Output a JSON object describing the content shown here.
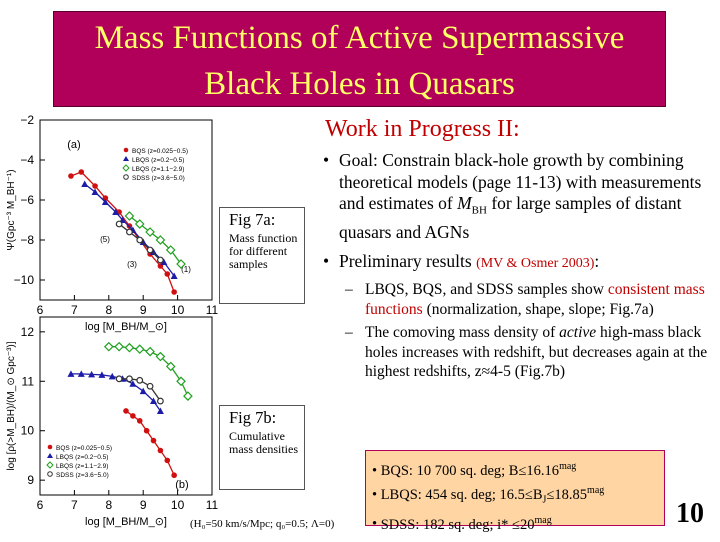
{
  "title": {
    "line1": "Mass Functions of Active Supermassive",
    "line2": "Black Holes in Quasars"
  },
  "subtitle": "Work in Progress II:",
  "goal": {
    "lead": "Goal: Constrain black-hole growth by combining theoretical models (page 11-13) with measurements and estimates of ",
    "var": "M",
    "var_sub": "BH",
    "tail": " for large samples of distant quasars and AGNs"
  },
  "prelim": {
    "lead": "Preliminary results ",
    "ref": "(MV & Osmer 2003)",
    "tail": ":"
  },
  "sub1": {
    "lead": "LBQS, BQS, and SDSS samples show ",
    "highlight": "consistent mass functions",
    "tail": " (normalization, shape, slope; Fig.7a)"
  },
  "sub2": {
    "lead": "The comoving mass density of ",
    "em": "active",
    "tail": " high-mass black holes increases with redshift, but decreases again at the highest redshifts, z≈4-5 (Fig.7b)"
  },
  "surveys": [
    {
      "name": "BQS: 10 700 sq. deg; B≤16.16",
      "sup": "mag"
    },
    {
      "name": "LBQS: 454 sq. deg; 16.5≤B",
      "sub": "J",
      "mid": "≤18.85",
      "sup": "mag"
    },
    {
      "name": "SDSS: 182 sq. deg;  i* ≤20",
      "sup": "mag"
    }
  ],
  "page_number": "10",
  "fig7a": {
    "title": "Fig 7a:",
    "desc": "Mass function for different samples"
  },
  "fig7b": {
    "title": "Fig 7b:",
    "desc": "Cumulative mass densities"
  },
  "footnote": "(H₀=50 km/s/Mpc; q₀=0.5; Λ=0)",
  "colors": {
    "title_bg": "#b0005a",
    "title_text": "#ffff66",
    "accent_red": "#c00000",
    "box_bg": "#fed5a3"
  },
  "chart_data": [
    {
      "type": "line",
      "panel_label": "(a)",
      "xlabel": "log [M_BH/M_⊙]",
      "ylabel": "Ψ(Gpc⁻³ M_BH⁻¹)",
      "xlim": [
        6,
        11
      ],
      "ylim": [
        -11,
        -2
      ],
      "xticks": [
        "6",
        "7",
        "8",
        "9",
        "10",
        "11"
      ],
      "yticks": [
        "−2",
        "−4",
        "−6",
        "−8",
        "−10"
      ],
      "annotations": [
        "(5)",
        "(3)",
        "(1)"
      ],
      "series": [
        {
          "name": "BQS (z=0.025−0.5)",
          "color": "#d01010",
          "marker": "circle",
          "x": [
            6.9,
            7.2,
            7.6,
            7.9,
            8.3,
            8.6,
            8.9,
            9.2,
            9.5,
            9.7,
            9.9
          ],
          "y": [
            -4.8,
            -4.6,
            -5.3,
            -5.9,
            -6.6,
            -7.3,
            -8.0,
            -8.7,
            -9.3,
            -9.7,
            -10.6
          ]
        },
        {
          "name": "LBQS (z=0.2−0.5)",
          "color": "#1c1ca8",
          "marker": "triangle",
          "x": [
            7.3,
            7.6,
            7.9,
            8.2,
            8.4,
            8.7,
            9.0,
            9.3,
            9.6,
            9.9
          ],
          "y": [
            -5.2,
            -5.6,
            -6.1,
            -6.6,
            -7.0,
            -7.5,
            -8.1,
            -8.6,
            -9.1,
            -9.8
          ]
        },
        {
          "name": "LBQS (z=1.1−2.9)",
          "color": "#20a020",
          "marker": "diamond",
          "x": [
            8.6,
            8.9,
            9.2,
            9.5,
            9.8,
            10.1
          ],
          "y": [
            -6.8,
            -7.2,
            -7.6,
            -8.0,
            -8.5,
            -9.2
          ]
        },
        {
          "name": "SDSS (z=3.6−5.0)",
          "color": "#333333",
          "marker": "circle-open",
          "x": [
            8.3,
            8.6,
            8.9,
            9.2,
            9.5
          ],
          "y": [
            -7.2,
            -7.6,
            -8.0,
            -8.5,
            -9.0
          ]
        }
      ]
    },
    {
      "type": "line",
      "panel_label": "(b)",
      "xlabel": "log [M_BH/M_⊙]",
      "ylabel": "log [ρ(>M_BH)/(M_⊙ Gpc⁻³)]",
      "xlim": [
        6,
        11
      ],
      "ylim": [
        8.7,
        12.3
      ],
      "xticks": [
        "6",
        "7",
        "8",
        "9",
        "10",
        "11"
      ],
      "yticks": [
        "9",
        "10",
        "11",
        "12"
      ],
      "series": [
        {
          "name": "BQS (z=0.025−0.5)",
          "color": "#d01010",
          "marker": "circle",
          "x": [
            8.5,
            8.7,
            8.9,
            9.1,
            9.3,
            9.5,
            9.7,
            9.9
          ],
          "y": [
            10.4,
            10.3,
            10.2,
            10.0,
            9.8,
            9.6,
            9.4,
            9.1
          ]
        },
        {
          "name": "LBQS (z=0.2−0.5)",
          "color": "#1c1ca8",
          "marker": "triangle",
          "x": [
            6.9,
            7.2,
            7.5,
            7.8,
            8.1,
            8.4,
            8.7,
            9.0,
            9.3,
            9.5
          ],
          "y": [
            11.15,
            11.15,
            11.14,
            11.13,
            11.1,
            11.05,
            10.95,
            10.8,
            10.6,
            10.4
          ]
        },
        {
          "name": "LBQS (z=1.1−2.9)",
          "color": "#20a020",
          "marker": "diamond",
          "x": [
            8.0,
            8.3,
            8.6,
            8.9,
            9.2,
            9.5,
            9.8,
            10.1,
            10.3
          ],
          "y": [
            11.7,
            11.7,
            11.68,
            11.65,
            11.6,
            11.5,
            11.3,
            11.0,
            10.7
          ]
        },
        {
          "name": "SDSS (z=3.6−5.0)",
          "color": "#333333",
          "marker": "circle-open",
          "x": [
            8.3,
            8.6,
            8.9,
            9.2,
            9.5
          ],
          "y": [
            11.05,
            11.05,
            11.02,
            10.9,
            10.6
          ]
        }
      ]
    }
  ]
}
